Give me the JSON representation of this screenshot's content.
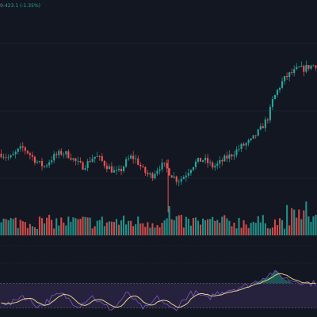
{
  "readout": {
    "prefix": "9",
    "change": "-423.1 (-1.35%)"
  },
  "colors": {
    "background": "#131722",
    "grid": "#2a2e39",
    "up": "#26a69a",
    "down": "#ef5350",
    "rsi_fill": "rgba(126,87,194,0.18)",
    "rsi_line": "#7e57c2",
    "rsi_ma": "#e6d28a",
    "rsi_overbought_fill": "rgba(38,166,154,0.45)"
  },
  "chart_data": {
    "type": "candlestick",
    "price_trend": [
      130,
      128,
      126,
      129,
      133,
      135,
      132,
      128,
      124,
      121,
      119,
      123,
      127,
      129,
      131,
      130,
      128,
      124,
      121,
      119,
      122,
      126,
      128,
      125,
      121,
      118,
      115,
      113,
      117,
      123,
      127,
      126,
      121,
      115,
      112,
      111,
      116,
      120,
      119,
      114,
      110,
      107,
      109,
      113,
      118,
      122,
      124,
      125,
      122,
      119,
      120,
      123,
      126,
      128,
      131,
      134,
      137,
      139,
      141,
      146,
      150,
      156,
      162,
      176,
      184,
      191,
      196,
      199,
      201,
      204,
      203,
      205,
      206,
      207
    ],
    "rsi_trend": [
      42,
      38,
      35,
      40,
      47,
      50,
      45,
      40,
      35,
      33,
      37,
      43,
      47,
      50,
      52,
      48,
      42,
      37,
      34,
      38,
      45,
      49,
      44,
      37,
      33,
      30,
      28,
      35,
      45,
      52,
      50,
      42,
      34,
      30,
      29,
      38,
      46,
      44,
      36,
      30,
      27,
      32,
      40,
      48,
      53,
      54,
      51,
      46,
      45,
      50,
      54,
      56,
      58,
      60,
      61,
      63,
      64,
      66,
      69,
      72,
      76,
      80,
      84,
      87,
      85,
      82,
      78,
      75,
      74,
      73,
      72,
      71,
      70,
      70
    ]
  }
}
